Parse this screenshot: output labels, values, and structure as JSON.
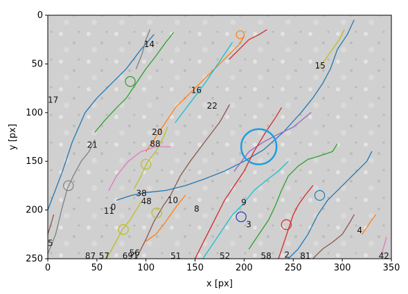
{
  "chart_data": {
    "type": "scatter",
    "title": "",
    "xlabel": "x [px]",
    "ylabel": "y [px]",
    "xlim": [
      0,
      350
    ],
    "ylim": [
      250,
      0
    ],
    "y_inverted": true,
    "grid": false,
    "background": "grayscale microscopy image",
    "x_ticks": [
      0,
      50,
      100,
      150,
      200,
      250,
      300,
      350
    ],
    "y_ticks": [
      0,
      50,
      100,
      150,
      200,
      250
    ],
    "x_tick_labels": [
      "0",
      "50",
      "100",
      "150",
      "200",
      "250",
      "300",
      "350"
    ],
    "y_tick_labels": [
      "0",
      "50",
      "100",
      "150",
      "200",
      "250"
    ],
    "tracks": [
      {
        "color": "#1f77b4",
        "points": [
          [
            0,
            200
          ],
          [
            15,
            160
          ],
          [
            25,
            130
          ],
          [
            38,
            100
          ],
          [
            50,
            85
          ],
          [
            65,
            70
          ],
          [
            80,
            55
          ],
          [
            95,
            35
          ],
          [
            108,
            20
          ]
        ]
      },
      {
        "color": "#2ca02c",
        "points": [
          [
            48,
            120
          ],
          [
            58,
            108
          ],
          [
            70,
            95
          ],
          [
            80,
            85
          ],
          [
            90,
            70
          ],
          [
            100,
            55
          ],
          [
            110,
            42
          ],
          [
            120,
            28
          ],
          [
            128,
            18
          ]
        ]
      },
      {
        "color": "#7f7f7f",
        "points": [
          [
            0,
            245
          ],
          [
            8,
            225
          ],
          [
            14,
            200
          ],
          [
            20,
            178
          ],
          [
            26,
            165
          ],
          [
            34,
            150
          ],
          [
            42,
            140
          ],
          [
            48,
            128
          ]
        ]
      },
      {
        "color": "#ff7f0e",
        "points": [
          [
            100,
            140
          ],
          [
            110,
            125
          ],
          [
            120,
            110
          ],
          [
            130,
            95
          ],
          [
            145,
            80
          ],
          [
            160,
            65
          ],
          [
            175,
            50
          ],
          [
            185,
            40
          ],
          [
            195,
            30
          ],
          [
            200,
            22
          ]
        ]
      },
      {
        "color": "#17becf",
        "points": [
          [
            130,
            110
          ],
          [
            145,
            90
          ],
          [
            160,
            70
          ],
          [
            170,
            55
          ],
          [
            180,
            40
          ],
          [
            188,
            28
          ]
        ]
      },
      {
        "color": "#d62728",
        "points": [
          [
            185,
            45
          ],
          [
            195,
            35
          ],
          [
            205,
            25
          ],
          [
            215,
            20
          ],
          [
            223,
            15
          ]
        ]
      },
      {
        "color": "#8c564b",
        "points": [
          [
            90,
            250
          ],
          [
            100,
            230
          ],
          [
            108,
            212
          ],
          [
            118,
            195
          ],
          [
            125,
            185
          ],
          [
            135,
            165
          ],
          [
            145,
            150
          ],
          [
            160,
            130
          ],
          [
            175,
            110
          ],
          [
            185,
            92
          ]
        ]
      },
      {
        "color": "#1f77b4",
        "points": [
          [
            70,
            190
          ],
          [
            85,
            185
          ],
          [
            100,
            182
          ],
          [
            120,
            180
          ],
          [
            140,
            175
          ],
          [
            160,
            168
          ],
          [
            180,
            160
          ],
          [
            200,
            150
          ],
          [
            220,
            138
          ],
          [
            240,
            120
          ],
          [
            258,
            100
          ],
          [
            270,
            85
          ],
          [
            280,
            70
          ],
          [
            288,
            55
          ],
          [
            295,
            35
          ],
          [
            305,
            20
          ],
          [
            312,
            5
          ]
        ]
      },
      {
        "color": "#e377c2",
        "points": [
          [
            62,
            180
          ],
          [
            70,
            165
          ],
          [
            82,
            150
          ],
          [
            95,
            140
          ],
          [
            110,
            135
          ],
          [
            125,
            135
          ]
        ]
      },
      {
        "color": "#9467bd",
        "points": [
          [
            190,
            160
          ],
          [
            205,
            140
          ],
          [
            220,
            130
          ],
          [
            235,
            122
          ],
          [
            250,
            115
          ],
          [
            262,
            105
          ],
          [
            268,
            100
          ]
        ]
      },
      {
        "color": "#bcbd22",
        "points": [
          [
            88,
            178
          ],
          [
            95,
            165
          ],
          [
            102,
            150
          ],
          [
            110,
            140
          ],
          [
            118,
            125
          ],
          [
            122,
            115
          ]
        ]
      },
      {
        "color": "#d62728",
        "points": [
          [
            150,
            250
          ],
          [
            160,
            230
          ],
          [
            170,
            210
          ],
          [
            180,
            190
          ],
          [
            190,
            175
          ],
          [
            200,
            160
          ],
          [
            210,
            140
          ],
          [
            222,
            120
          ],
          [
            232,
            105
          ],
          [
            238,
            95
          ]
        ]
      },
      {
        "color": "#17becf",
        "points": [
          [
            158,
            250
          ],
          [
            168,
            235
          ],
          [
            178,
            220
          ],
          [
            188,
            205
          ],
          [
            198,
            195
          ],
          [
            210,
            180
          ],
          [
            222,
            170
          ],
          [
            235,
            160
          ],
          [
            245,
            150
          ]
        ]
      },
      {
        "color": "#2ca02c",
        "points": [
          [
            205,
            240
          ],
          [
            215,
            225
          ],
          [
            225,
            210
          ],
          [
            232,
            195
          ],
          [
            238,
            180
          ],
          [
            245,
            165
          ],
          [
            255,
            155
          ],
          [
            265,
            148
          ],
          [
            275,
            145
          ],
          [
            290,
            140
          ],
          [
            295,
            132
          ]
        ]
      },
      {
        "color": "#d62728",
        "points": [
          [
            235,
            250
          ],
          [
            240,
            235
          ],
          [
            245,
            220
          ],
          [
            250,
            205
          ],
          [
            255,
            195
          ],
          [
            262,
            185
          ],
          [
            270,
            175
          ]
        ]
      },
      {
        "color": "#1f77b4",
        "points": [
          [
            245,
            250
          ],
          [
            255,
            240
          ],
          [
            265,
            225
          ],
          [
            275,
            205
          ],
          [
            285,
            190
          ],
          [
            295,
            180
          ],
          [
            305,
            170
          ],
          [
            315,
            160
          ],
          [
            325,
            150
          ],
          [
            330,
            140
          ]
        ]
      },
      {
        "color": "#8c564b",
        "points": [
          [
            270,
            250
          ],
          [
            280,
            240
          ],
          [
            290,
            233
          ],
          [
            300,
            225
          ],
          [
            308,
            212
          ],
          [
            312,
            205
          ]
        ]
      },
      {
        "color": "#ff7f0e",
        "points": [
          [
            320,
            225
          ],
          [
            325,
            218
          ],
          [
            330,
            210
          ],
          [
            334,
            205
          ]
        ]
      },
      {
        "color": "#bcbd22",
        "points": [
          [
            275,
            55
          ],
          [
            283,
            45
          ],
          [
            290,
            35
          ],
          [
            297,
            25
          ],
          [
            302,
            15
          ]
        ]
      },
      {
        "color": "#e377c2",
        "points": [
          [
            340,
            245
          ],
          [
            343,
            235
          ],
          [
            345,
            228
          ]
        ]
      },
      {
        "color": "#8c564b",
        "points": [
          [
            0,
            225
          ],
          [
            3,
            215
          ],
          [
            6,
            205
          ]
        ]
      },
      {
        "color": "#bcbd22",
        "points": [
          [
            60,
            250
          ],
          [
            68,
            235
          ],
          [
            76,
            220
          ],
          [
            84,
            210
          ],
          [
            90,
            200
          ],
          [
            95,
            192
          ]
        ]
      },
      {
        "color": "#7f7f7f",
        "points": [
          [
            90,
            55
          ],
          [
            96,
            40
          ],
          [
            100,
            25
          ],
          [
            104,
            15
          ]
        ]
      },
      {
        "color": "#ff7f0e",
        "points": [
          [
            100,
            232
          ],
          [
            110,
            225
          ],
          [
            118,
            215
          ],
          [
            125,
            205
          ],
          [
            132,
            195
          ],
          [
            140,
            185
          ]
        ]
      }
    ],
    "circles": [
      {
        "x": 215,
        "y": 135,
        "r": 18,
        "color": "#1f9de0"
      },
      {
        "x": 84,
        "y": 68,
        "r": 5,
        "color": "#2ca02c"
      },
      {
        "x": 21,
        "y": 175,
        "r": 5,
        "color": "#7f7f7f"
      },
      {
        "x": 100,
        "y": 153,
        "r": 5,
        "color": "#bcbd22"
      },
      {
        "x": 111,
        "y": 203,
        "r": 5,
        "color": "#bcbd22"
      },
      {
        "x": 77,
        "y": 220,
        "r": 5,
        "color": "#bcbd22"
      },
      {
        "x": 197,
        "y": 207,
        "r": 5,
        "color": "#1f3fb4"
      },
      {
        "x": 243,
        "y": 215,
        "r": 5,
        "color": "#d62728"
      },
      {
        "x": 277,
        "y": 185,
        "r": 5,
        "color": "#1f77b4"
      },
      {
        "x": 196,
        "y": 20,
        "r": 4,
        "color": "#ff7f0e"
      }
    ],
    "labels": [
      {
        "text": "14",
        "x": 98,
        "y": 30
      },
      {
        "text": "15",
        "x": 272,
        "y": 52
      },
      {
        "text": "17",
        "x": 0,
        "y": 87
      },
      {
        "text": "16",
        "x": 146,
        "y": 77
      },
      {
        "text": "22",
        "x": 162,
        "y": 93
      },
      {
        "text": "20",
        "x": 106,
        "y": 120
      },
      {
        "text": "88",
        "x": 104,
        "y": 132
      },
      {
        "text": "21",
        "x": 40,
        "y": 133
      },
      {
        "text": "38",
        "x": 90,
        "y": 183
      },
      {
        "text": "48",
        "x": 95,
        "y": 191
      },
      {
        "text": "10",
        "x": 122,
        "y": 190
      },
      {
        "text": "8",
        "x": 149,
        "y": 199
      },
      {
        "text": "9",
        "x": 197,
        "y": 192
      },
      {
        "text": "0",
        "x": 64,
        "y": 197
      },
      {
        "text": "11",
        "x": 57,
        "y": 201
      },
      {
        "text": "3",
        "x": 202,
        "y": 215
      },
      {
        "text": "4",
        "x": 315,
        "y": 221
      },
      {
        "text": "5",
        "x": 0,
        "y": 234
      },
      {
        "text": "56",
        "x": 83,
        "y": 244
      },
      {
        "text": "87",
        "x": 38,
        "y": 247
      },
      {
        "text": "57",
        "x": 52,
        "y": 247
      },
      {
        "text": "69",
        "x": 76,
        "y": 247
      },
      {
        "text": "1",
        "x": 87,
        "y": 247
      },
      {
        "text": "51",
        "x": 125,
        "y": 247
      },
      {
        "text": "52",
        "x": 175,
        "y": 247
      },
      {
        "text": "58",
        "x": 217,
        "y": 247
      },
      {
        "text": "2",
        "x": 241,
        "y": 246
      },
      {
        "text": "81",
        "x": 257,
        "y": 247
      },
      {
        "text": "42",
        "x": 337,
        "y": 247
      }
    ]
  }
}
